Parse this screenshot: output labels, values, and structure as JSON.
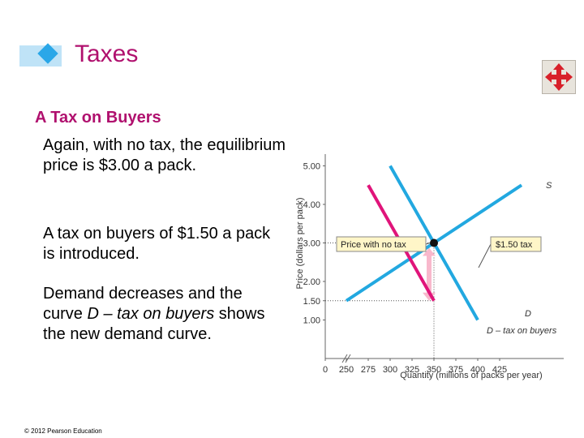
{
  "slide": {
    "title": "Taxes",
    "heading": "A Tax on Buyers",
    "paragraphs": [
      "Again, with no tax, the equilibrium price is $3.00 a pack.",
      "A tax on buyers of $1.50 a pack is introduced."
    ],
    "para3": {
      "before": "Demand decreases and the curve ",
      "italic": "D – tax on buyers",
      "after": " shows the new demand curve."
    },
    "copyright": "© 2012 Pearson Education",
    "colors": {
      "title": "#b0106e",
      "accent": "#2aa7e8"
    },
    "nav_icon": "four-way-arrow-icon"
  },
  "chart_data": {
    "type": "line",
    "xlabel": "Quantity (millions of packs per year)",
    "ylabel": "Price (dollars per pack)",
    "x_ticks": [
      0,
      250,
      275,
      300,
      325,
      350,
      375,
      400,
      425
    ],
    "x_tick_labels": [
      "0",
      "250",
      "275",
      "300",
      "325",
      "350",
      "375",
      "400",
      "425"
    ],
    "y_ticks": [
      1.0,
      1.5,
      2.0,
      3.0,
      4.0,
      5.0
    ],
    "y_tick_labels": [
      "1.00",
      "1.50",
      "2.00",
      "3.00",
      "4.00",
      "5.00"
    ],
    "series": [
      {
        "name": "S",
        "color": "#22a8e0",
        "x": [
          250,
          350,
          450
        ],
        "y": [
          1.5,
          3.0,
          4.5
        ]
      },
      {
        "name": "D",
        "color": "#22a8e0",
        "x": [
          300,
          350,
          400
        ],
        "y": [
          5.0,
          3.0,
          1.0
        ]
      },
      {
        "name": "D – tax on buyers",
        "color": "#e0147a",
        "x": [
          275,
          325,
          350
        ],
        "y": [
          4.5,
          2.5,
          1.5
        ]
      }
    ],
    "equilibrium": {
      "x": 350,
      "y": 3.0
    },
    "tax_arrow": {
      "x": 350,
      "from": 3.0,
      "to": 1.5
    },
    "annotations": [
      "Price with no tax",
      "$1.50 tax"
    ],
    "axis_break": true
  }
}
